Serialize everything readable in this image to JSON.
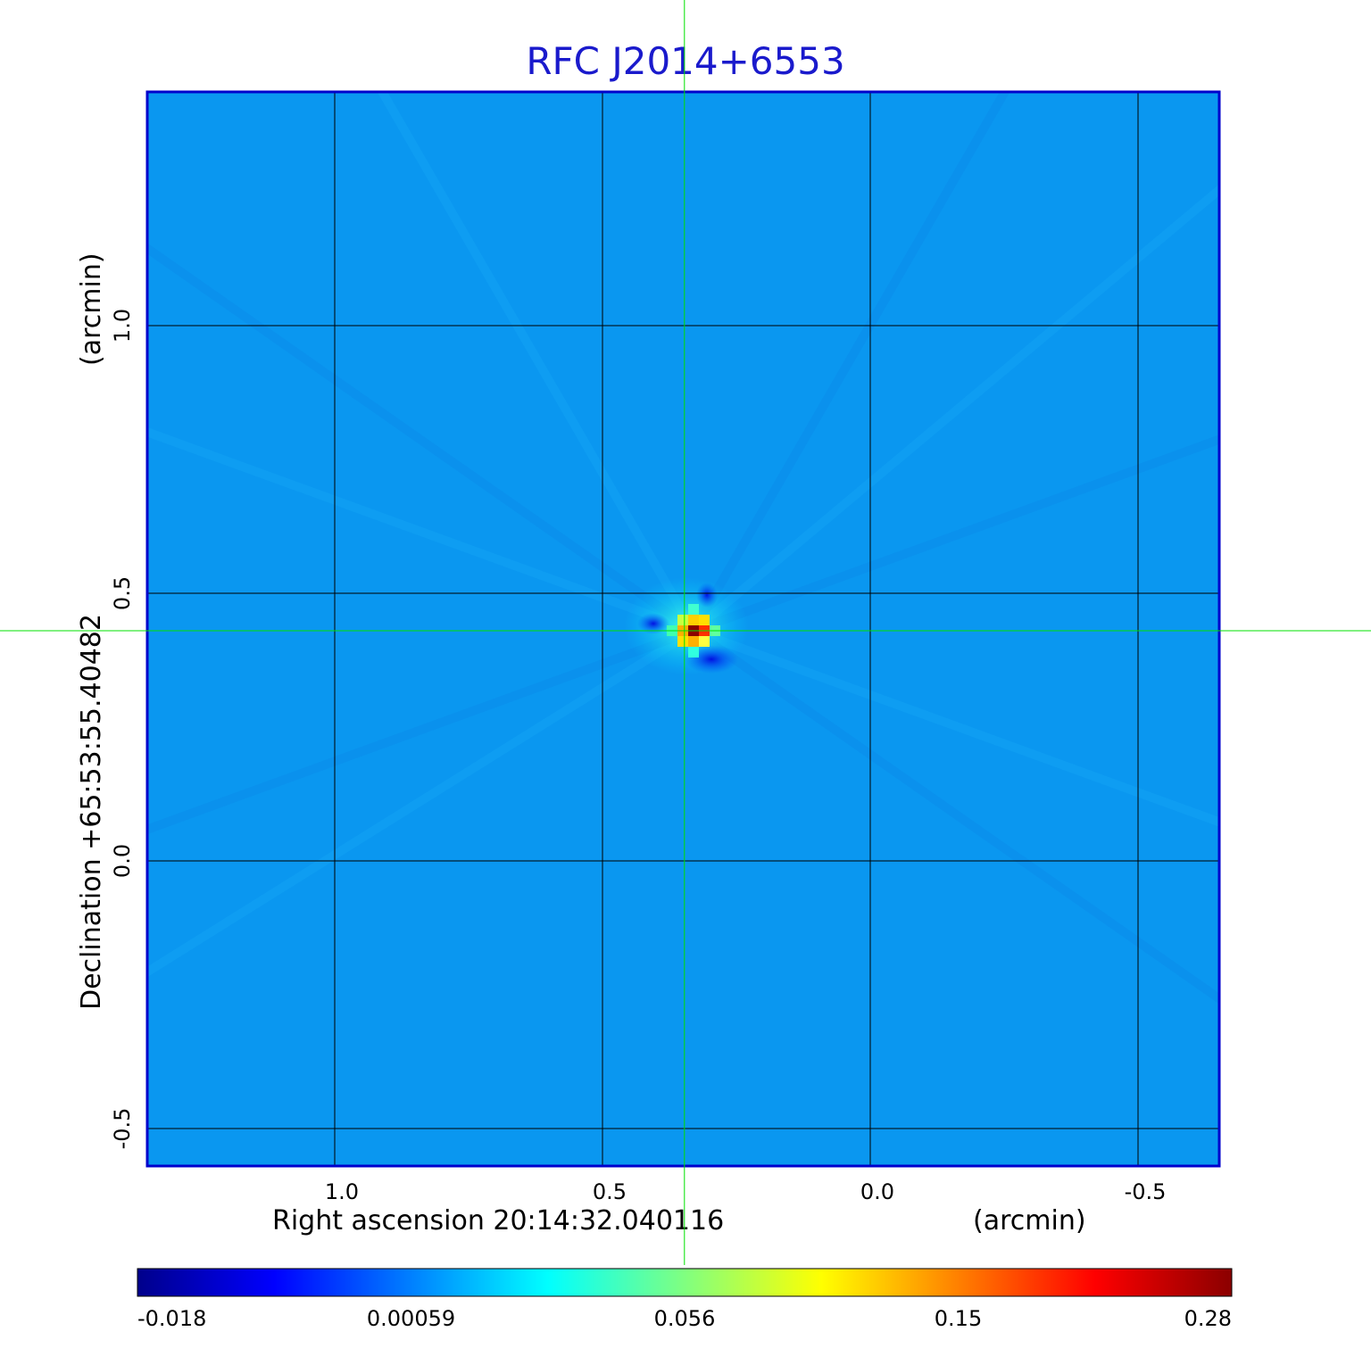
{
  "chart_data": {
    "type": "heatmap",
    "title": "RFC J2014+6553",
    "xlabel": "Right ascension  20:14:32.040116",
    "xlabel_unit": "(arcmin)",
    "ylabel": "Declination  +65:53:55.40482",
    "ylabel_unit": "(arcmin)",
    "x_ticks": [
      1.0,
      0.5,
      0.0,
      -0.5
    ],
    "x_tick_labels": [
      "1.0",
      "0.5",
      "0.0",
      "-0.5"
    ],
    "y_ticks": [
      1.0,
      0.5,
      0.0,
      -0.5
    ],
    "y_tick_labels": [
      "1.0",
      "0.5",
      "0.0",
      "-0.5"
    ],
    "xlim": [
      1.35,
      -0.65
    ],
    "ylim": [
      -0.57,
      1.44
    ],
    "grid": true,
    "crosshair": {
      "x": 0.347,
      "y": 0.43
    },
    "source_peak": {
      "x": 0.33,
      "y": 0.43,
      "value": 0.28
    },
    "colorbar": {
      "min": -0.018,
      "max": 0.28,
      "tick_labels": [
        "-0.018",
        "0.00059",
        "0.056",
        "0.15",
        "0.28"
      ],
      "colormap": "jet",
      "colors": [
        "#00008b",
        "#0000ff",
        "#0080ff",
        "#00ffff",
        "#80ff80",
        "#ffff00",
        "#ff8000",
        "#ff0000",
        "#8b0000"
      ]
    },
    "background_color": "#0a97f0",
    "frame_color": "#0000cc",
    "crosshair_color": "#00e000"
  }
}
